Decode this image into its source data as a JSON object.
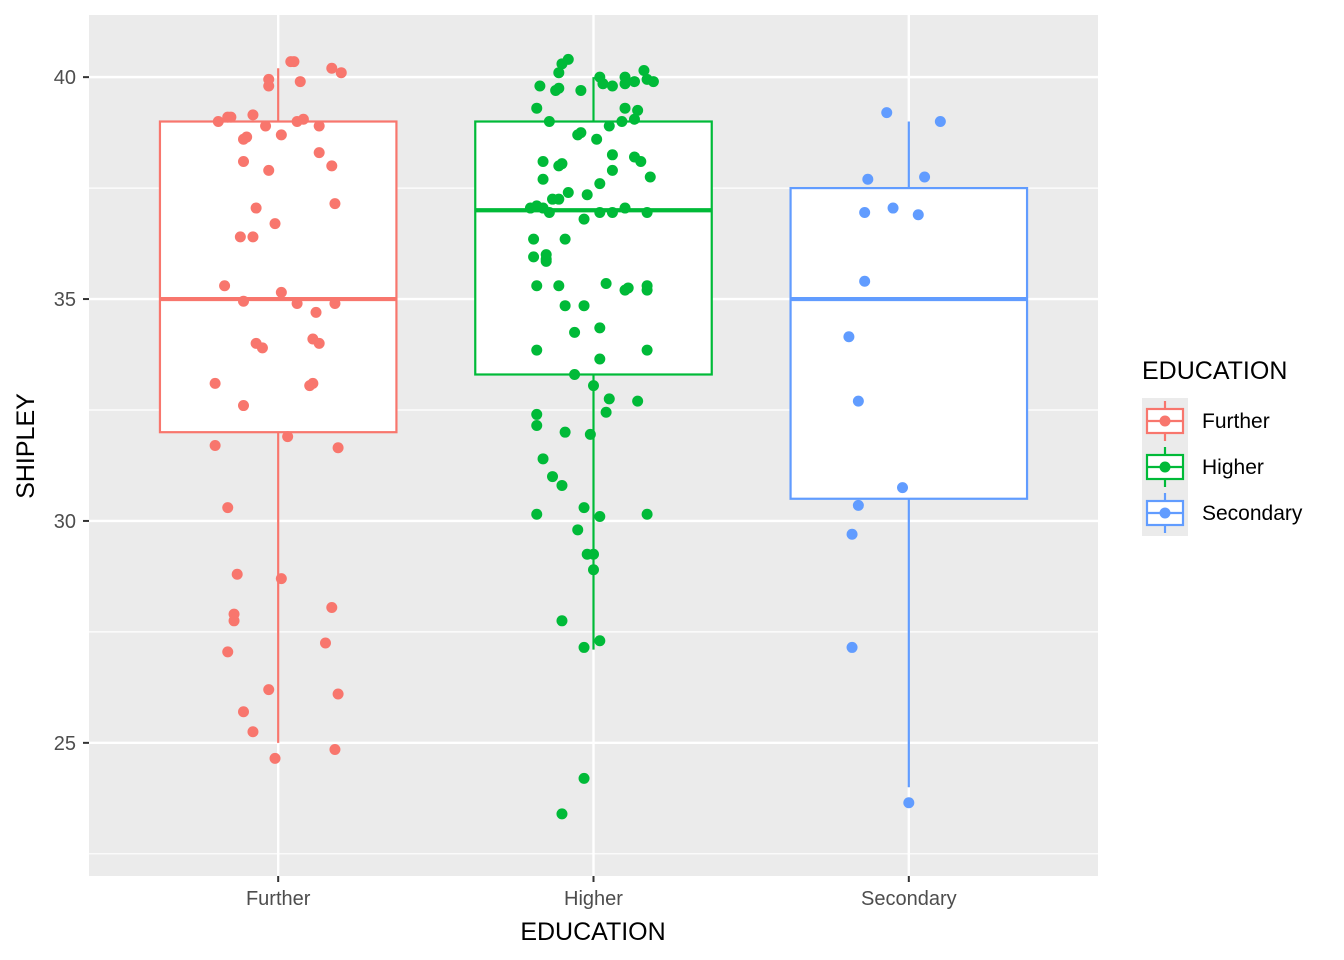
{
  "chart_data": {
    "type": "box",
    "xlabel": "EDUCATION",
    "ylabel": "SHIPLEY",
    "ylim": [
      22.0,
      41.4
    ],
    "yticks": [
      25,
      30,
      35,
      40
    ],
    "categories": [
      "Further",
      "Higher",
      "Secondary"
    ],
    "grid": true,
    "legend": {
      "title": "EDUCATION",
      "placement": "right",
      "entries": [
        "Further",
        "Higher",
        "Secondary"
      ]
    },
    "series": [
      {
        "name": "Further",
        "color": "#F8766D",
        "box": {
          "whisker_low": 25.0,
          "q1": 32.0,
          "median": 35.0,
          "q3": 39.0,
          "whisker_high": 40.2
        },
        "points": [
          [
            -0.19,
            39.0
          ],
          [
            -0.16,
            39.1
          ],
          [
            -0.15,
            39.1
          ],
          [
            -0.08,
            39.15
          ],
          [
            -0.04,
            38.9
          ],
          [
            -0.11,
            38.6
          ],
          [
            -0.1,
            38.65
          ],
          [
            0.01,
            38.7
          ],
          [
            0.06,
            39.0
          ],
          [
            0.08,
            39.05
          ],
          [
            0.13,
            38.9
          ],
          [
            0.04,
            40.35
          ],
          [
            0.05,
            40.35
          ],
          [
            -0.03,
            39.8
          ],
          [
            -0.03,
            39.95
          ],
          [
            0.07,
            39.9
          ],
          [
            0.17,
            40.2
          ],
          [
            0.2,
            40.1
          ],
          [
            -0.11,
            38.1
          ],
          [
            -0.03,
            37.9
          ],
          [
            0.13,
            38.3
          ],
          [
            0.17,
            38.0
          ],
          [
            -0.07,
            37.05
          ],
          [
            -0.01,
            36.7
          ],
          [
            0.18,
            37.15
          ],
          [
            -0.12,
            36.4
          ],
          [
            -0.08,
            36.4
          ],
          [
            -0.17,
            35.3
          ],
          [
            0.01,
            35.15
          ],
          [
            -0.11,
            34.95
          ],
          [
            0.06,
            34.9
          ],
          [
            0.12,
            34.7
          ],
          [
            0.18,
            34.9
          ],
          [
            -0.07,
            34.0
          ],
          [
            -0.05,
            33.9
          ],
          [
            0.11,
            34.1
          ],
          [
            0.13,
            34.0
          ],
          [
            -0.2,
            33.1
          ],
          [
            0.1,
            33.05
          ],
          [
            0.11,
            33.1
          ],
          [
            -0.11,
            32.6
          ],
          [
            0.03,
            31.9
          ],
          [
            -0.2,
            31.7
          ],
          [
            0.19,
            31.65
          ],
          [
            -0.16,
            30.3
          ],
          [
            -0.13,
            28.8
          ],
          [
            0.01,
            28.7
          ],
          [
            -0.14,
            27.9
          ],
          [
            -0.14,
            27.75
          ],
          [
            0.17,
            28.05
          ],
          [
            -0.16,
            27.05
          ],
          [
            0.15,
            27.25
          ],
          [
            -0.03,
            26.2
          ],
          [
            0.19,
            26.1
          ],
          [
            -0.11,
            25.7
          ],
          [
            -0.08,
            25.25
          ],
          [
            -0.01,
            24.65
          ],
          [
            0.18,
            24.85
          ]
        ]
      },
      {
        "name": "Higher",
        "color": "#00BA38",
        "box": {
          "whisker_low": 27.1,
          "q1": 33.3,
          "median": 37.0,
          "q3": 39.0,
          "whisker_high": 40.0
        },
        "points": [
          [
            -0.18,
            39.3
          ],
          [
            -0.14,
            39.0
          ],
          [
            -0.17,
            39.8
          ],
          [
            -0.12,
            39.7
          ],
          [
            -0.11,
            39.75
          ],
          [
            -0.11,
            40.1
          ],
          [
            -0.1,
            40.3
          ],
          [
            -0.08,
            40.4
          ],
          [
            -0.04,
            39.7
          ],
          [
            0.02,
            40.0
          ],
          [
            0.03,
            39.85
          ],
          [
            0.06,
            39.8
          ],
          [
            0.1,
            39.85
          ],
          [
            0.1,
            40.0
          ],
          [
            0.13,
            39.9
          ],
          [
            0.16,
            40.15
          ],
          [
            0.17,
            39.95
          ],
          [
            0.19,
            39.9
          ],
          [
            0.1,
            39.3
          ],
          [
            0.14,
            39.25
          ],
          [
            0.05,
            38.9
          ],
          [
            0.09,
            39.0
          ],
          [
            0.13,
            39.05
          ],
          [
            -0.05,
            38.7
          ],
          [
            -0.04,
            38.75
          ],
          [
            0.01,
            38.6
          ],
          [
            0.06,
            38.25
          ],
          [
            0.13,
            38.2
          ],
          [
            0.15,
            38.1
          ],
          [
            -0.16,
            38.1
          ],
          [
            -0.11,
            38.0
          ],
          [
            -0.1,
            38.05
          ],
          [
            0.06,
            37.9
          ],
          [
            0.18,
            37.75
          ],
          [
            -0.16,
            37.7
          ],
          [
            0.02,
            37.6
          ],
          [
            -0.2,
            37.05
          ],
          [
            -0.18,
            37.1
          ],
          [
            -0.16,
            37.05
          ],
          [
            -0.14,
            36.95
          ],
          [
            -0.13,
            37.25
          ],
          [
            -0.11,
            37.25
          ],
          [
            -0.08,
            37.4
          ],
          [
            -0.03,
            36.8
          ],
          [
            -0.02,
            37.35
          ],
          [
            0.02,
            36.95
          ],
          [
            0.06,
            36.95
          ],
          [
            0.1,
            37.05
          ],
          [
            0.17,
            36.95
          ],
          [
            -0.19,
            36.35
          ],
          [
            -0.09,
            36.35
          ],
          [
            -0.15,
            36.0
          ],
          [
            -0.15,
            35.9
          ],
          [
            -0.15,
            35.85
          ],
          [
            -0.19,
            35.95
          ],
          [
            -0.18,
            35.3
          ],
          [
            -0.11,
            35.3
          ],
          [
            0.04,
            35.35
          ],
          [
            0.1,
            35.2
          ],
          [
            0.11,
            35.25
          ],
          [
            0.17,
            35.3
          ],
          [
            0.17,
            35.2
          ],
          [
            -0.09,
            34.85
          ],
          [
            -0.03,
            34.85
          ],
          [
            0.02,
            34.35
          ],
          [
            -0.06,
            34.25
          ],
          [
            -0.18,
            33.85
          ],
          [
            0.02,
            33.65
          ],
          [
            0.17,
            33.85
          ],
          [
            -0.06,
            33.3
          ],
          [
            0.0,
            33.05
          ],
          [
            0.05,
            32.75
          ],
          [
            0.14,
            32.7
          ],
          [
            0.04,
            32.45
          ],
          [
            -0.18,
            32.4
          ],
          [
            -0.18,
            32.15
          ],
          [
            -0.09,
            32.0
          ],
          [
            -0.01,
            31.95
          ],
          [
            -0.16,
            31.4
          ],
          [
            -0.13,
            31.0
          ],
          [
            -0.1,
            30.8
          ],
          [
            -0.18,
            30.15
          ],
          [
            -0.03,
            30.3
          ],
          [
            0.02,
            30.1
          ],
          [
            0.17,
            30.15
          ],
          [
            -0.05,
            29.8
          ],
          [
            -0.02,
            29.25
          ],
          [
            0.0,
            29.25
          ],
          [
            0.0,
            28.9
          ],
          [
            -0.1,
            27.75
          ],
          [
            0.02,
            27.3
          ],
          [
            -0.03,
            27.15
          ],
          [
            -0.03,
            24.2
          ],
          [
            -0.1,
            23.4
          ]
        ]
      },
      {
        "name": "Secondary",
        "color": "#619CFF",
        "box": {
          "whisker_low": 24.0,
          "q1": 30.5,
          "median": 35.0,
          "q3": 37.5,
          "whisker_high": 39.0
        },
        "points": [
          [
            -0.07,
            39.2
          ],
          [
            0.1,
            39.0
          ],
          [
            -0.13,
            37.7
          ],
          [
            0.05,
            37.75
          ],
          [
            -0.14,
            36.95
          ],
          [
            -0.05,
            37.05
          ],
          [
            0.03,
            36.9
          ],
          [
            -0.14,
            35.4
          ],
          [
            -0.19,
            34.15
          ],
          [
            -0.16,
            32.7
          ],
          [
            -0.02,
            30.75
          ],
          [
            -0.16,
            30.35
          ],
          [
            -0.18,
            29.7
          ],
          [
            -0.18,
            27.15
          ],
          [
            0.0,
            23.65
          ]
        ]
      }
    ]
  }
}
